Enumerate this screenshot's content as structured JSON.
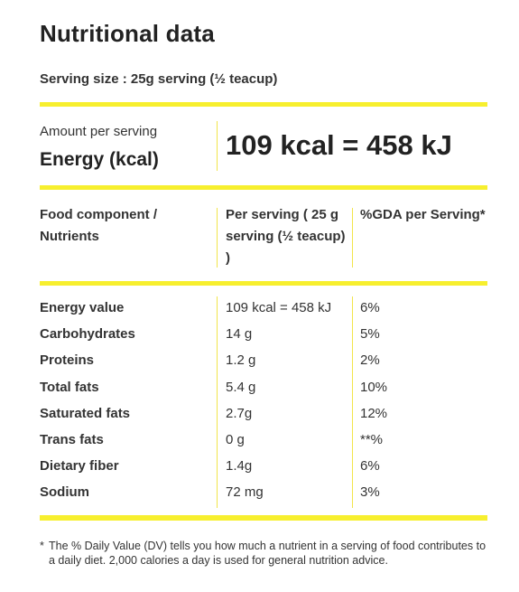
{
  "title": "Nutritional data",
  "serving_size": "Serving size : 25g serving (½ teacup)",
  "energy": {
    "amount_label": "Amount per serving",
    "label": "Energy (kcal)",
    "value": "109 kcal = 458 kJ"
  },
  "table": {
    "headers": {
      "component": "Food component / Nutrients",
      "per_serving": "Per serving ( 25 g serving (½ teacup) )",
      "gda": "%GDA per Serving*"
    },
    "rows": [
      {
        "name": "Energy value",
        "per_serving": "109 kcal = 458 kJ",
        "gda": "6%"
      },
      {
        "name": "Carbohydrates",
        "per_serving": "14 g",
        "gda": "5%"
      },
      {
        "name": "Proteins",
        "per_serving": "1.2 g",
        "gda": "2%"
      },
      {
        "name": "Total fats",
        "per_serving": "5.4 g",
        "gda": "10%"
      },
      {
        "name": "Saturated fats",
        "per_serving": "2.7g",
        "gda": "12%"
      },
      {
        "name": "Trans fats",
        "per_serving": "0 g",
        "gda": "**%"
      },
      {
        "name": "Dietary fiber",
        "per_serving": "1.4g",
        "gda": "6%"
      },
      {
        "name": "Sodium",
        "per_serving": "72 mg",
        "gda": "3%"
      }
    ]
  },
  "footnote": {
    "marker": "*",
    "text": "The % Daily Value (DV) tells you how much a nutrient in a serving of food contributes to a daily diet. 2,000 calories a day is used for general nutrition advice."
  },
  "colors": {
    "accent": "#f7ef2e",
    "divider": "#f2e54a",
    "text": "#222222"
  }
}
